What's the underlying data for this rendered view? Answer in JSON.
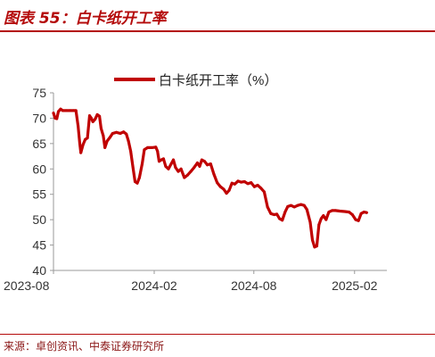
{
  "figure": {
    "title": "图表 55：白卡纸开工率",
    "source": "来源：卓创资讯、中泰证券研究所",
    "accent_color": "#b40a0a"
  },
  "chart_data": {
    "type": "line",
    "title": "",
    "xlabel": "",
    "ylabel": "",
    "ylim": [
      40,
      75
    ],
    "yticks": [
      40,
      45,
      50,
      55,
      60,
      65,
      70,
      75
    ],
    "x_start": "2023-08",
    "x_end": "2025-04",
    "xtick_labels": [
      "2023-08",
      "2024-02",
      "2024-08",
      "2025-02"
    ],
    "legend_position": "top",
    "grid": false,
    "series": [
      {
        "name": "白卡纸开工率（%）",
        "color": "#c00000",
        "points": [
          [
            "2023-08-01",
            71.0
          ],
          [
            "2023-08-04",
            70.0
          ],
          [
            "2023-08-07",
            69.9
          ],
          [
            "2023-08-10",
            71.3
          ],
          [
            "2023-08-14",
            71.8
          ],
          [
            "2023-08-18",
            71.5
          ],
          [
            "2023-08-24",
            71.5
          ],
          [
            "2023-08-31",
            71.5
          ],
          [
            "2023-09-07",
            71.5
          ],
          [
            "2023-09-11",
            71.5
          ],
          [
            "2023-09-15",
            68.5
          ],
          [
            "2023-09-18",
            65.0
          ],
          [
            "2023-09-20",
            63.2
          ],
          [
            "2023-09-24",
            64.8
          ],
          [
            "2023-09-28",
            65.8
          ],
          [
            "2023-10-02",
            66.1
          ],
          [
            "2023-10-06",
            70.5
          ],
          [
            "2023-10-09",
            70.0
          ],
          [
            "2023-10-12",
            69.3
          ],
          [
            "2023-10-16",
            69.8
          ],
          [
            "2023-10-20",
            70.7
          ],
          [
            "2023-10-24",
            70.4
          ],
          [
            "2023-10-27",
            68.0
          ],
          [
            "2023-10-31",
            66.5
          ],
          [
            "2023-11-03",
            64.2
          ],
          [
            "2023-11-07",
            65.5
          ],
          [
            "2023-11-12",
            66.2
          ],
          [
            "2023-11-17",
            67.0
          ],
          [
            "2023-11-24",
            67.2
          ],
          [
            "2023-12-01",
            67.0
          ],
          [
            "2023-12-07",
            67.3
          ],
          [
            "2023-12-12",
            66.9
          ],
          [
            "2023-12-16",
            65.5
          ],
          [
            "2023-12-20",
            63.5
          ],
          [
            "2023-12-24",
            60.5
          ],
          [
            "2023-12-28",
            57.5
          ],
          [
            "2024-01-01",
            57.2
          ],
          [
            "2024-01-05",
            58.3
          ],
          [
            "2024-01-10",
            61.0
          ],
          [
            "2024-01-14",
            63.8
          ],
          [
            "2024-01-20",
            64.2
          ],
          [
            "2024-01-28",
            64.2
          ],
          [
            "2024-02-04",
            64.3
          ],
          [
            "2024-02-07",
            63.5
          ],
          [
            "2024-02-10",
            61.5
          ],
          [
            "2024-02-14",
            61.8
          ],
          [
            "2024-02-18",
            62.0
          ],
          [
            "2024-02-22",
            60.5
          ],
          [
            "2024-02-27",
            60.0
          ],
          [
            "2024-03-03",
            61.0
          ],
          [
            "2024-03-07",
            61.8
          ],
          [
            "2024-03-11",
            60.3
          ],
          [
            "2024-03-16",
            59.5
          ],
          [
            "2024-03-21",
            60.0
          ],
          [
            "2024-03-27",
            58.3
          ],
          [
            "2024-04-02",
            58.8
          ],
          [
            "2024-04-08",
            59.5
          ],
          [
            "2024-04-14",
            60.3
          ],
          [
            "2024-04-20",
            61.2
          ],
          [
            "2024-04-24",
            60.5
          ],
          [
            "2024-04-28",
            61.8
          ],
          [
            "2024-05-03",
            61.5
          ],
          [
            "2024-05-08",
            60.8
          ],
          [
            "2024-05-14",
            61.0
          ],
          [
            "2024-05-20",
            59.0
          ],
          [
            "2024-05-26",
            57.3
          ],
          [
            "2024-06-01",
            56.5
          ],
          [
            "2024-06-07",
            56.0
          ],
          [
            "2024-06-12",
            55.2
          ],
          [
            "2024-06-17",
            55.8
          ],
          [
            "2024-06-22",
            57.2
          ],
          [
            "2024-06-27",
            57.0
          ],
          [
            "2024-07-03",
            57.6
          ],
          [
            "2024-07-09",
            57.4
          ],
          [
            "2024-07-15",
            57.5
          ],
          [
            "2024-07-21",
            57.1
          ],
          [
            "2024-07-27",
            57.3
          ],
          [
            "2024-08-02",
            56.5
          ],
          [
            "2024-08-08",
            56.8
          ],
          [
            "2024-08-14",
            56.2
          ],
          [
            "2024-08-20",
            55.5
          ],
          [
            "2024-08-26",
            52.5
          ],
          [
            "2024-09-01",
            51.2
          ],
          [
            "2024-09-07",
            51.0
          ],
          [
            "2024-09-12",
            51.1
          ],
          [
            "2024-09-17",
            50.2
          ],
          [
            "2024-09-22",
            49.9
          ],
          [
            "2024-09-27",
            51.5
          ],
          [
            "2024-10-02",
            52.6
          ],
          [
            "2024-10-08",
            52.8
          ],
          [
            "2024-10-14",
            52.5
          ],
          [
            "2024-10-20",
            52.8
          ],
          [
            "2024-10-26",
            53.0
          ],
          [
            "2024-11-01",
            52.8
          ],
          [
            "2024-11-06",
            52.0
          ],
          [
            "2024-11-12",
            49.5
          ],
          [
            "2024-11-16",
            46.0
          ],
          [
            "2024-11-20",
            44.6
          ],
          [
            "2024-11-24",
            44.8
          ],
          [
            "2024-11-28",
            49.0
          ],
          [
            "2024-12-02",
            50.2
          ],
          [
            "2024-12-06",
            50.8
          ],
          [
            "2024-12-11",
            50.0
          ],
          [
            "2024-12-16",
            51.5
          ],
          [
            "2024-12-22",
            51.8
          ],
          [
            "2024-12-28",
            51.8
          ],
          [
            "2025-01-05",
            51.7
          ],
          [
            "2025-01-14",
            51.6
          ],
          [
            "2025-01-22",
            51.5
          ],
          [
            "2025-01-28",
            51.0
          ],
          [
            "2025-02-03",
            50.0
          ],
          [
            "2025-02-08",
            49.8
          ],
          [
            "2025-02-13",
            51.2
          ],
          [
            "2025-02-18",
            51.5
          ],
          [
            "2025-02-23",
            51.4
          ]
        ]
      }
    ]
  }
}
